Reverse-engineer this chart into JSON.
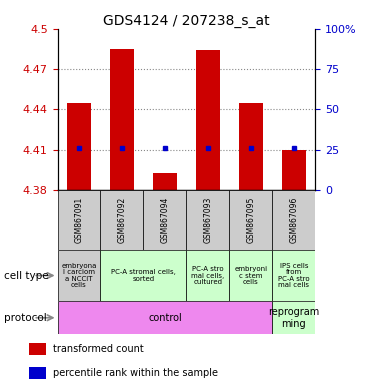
{
  "title": "GDS4124 / 207238_s_at",
  "samples": [
    "GSM867091",
    "GSM867092",
    "GSM867094",
    "GSM867093",
    "GSM867095",
    "GSM867096"
  ],
  "bar_tops": [
    4.445,
    4.485,
    4.393,
    4.484,
    4.445,
    4.41
  ],
  "bar_bottoms": [
    4.38,
    4.38,
    4.38,
    4.38,
    4.38,
    4.38
  ],
  "blue_dots": [
    4.411,
    4.411,
    4.411,
    4.411,
    4.411,
    4.411
  ],
  "ylim": [
    4.38,
    4.5
  ],
  "yticks": [
    4.38,
    4.41,
    4.44,
    4.47,
    4.5
  ],
  "ytick_labels": [
    "4.38",
    "4.41",
    "4.44",
    "4.47",
    "4.5"
  ],
  "y2ticks": [
    0,
    25,
    50,
    75,
    100
  ],
  "y2tick_labels": [
    "0",
    "25",
    "50",
    "75",
    "100%"
  ],
  "bar_color": "#cc0000",
  "dot_color": "#0000cc",
  "cell_groups": [
    {
      "start": 0,
      "end": 0,
      "color": "#cccccc",
      "label": "embryona\nl carciom\na NCCIT\ncells"
    },
    {
      "start": 1,
      "end": 2,
      "color": "#ccffcc",
      "label": "PC-A stromal cells,\nsorted"
    },
    {
      "start": 3,
      "end": 3,
      "color": "#ccffcc",
      "label": "PC-A stro\nmal cells,\ncultured"
    },
    {
      "start": 4,
      "end": 4,
      "color": "#ccffcc",
      "label": "embryoni\nc stem\ncells"
    },
    {
      "start": 5,
      "end": 5,
      "color": "#ccffcc",
      "label": "IPS cells\nfrom\nPC-A stro\nmal cells"
    }
  ],
  "prot_groups": [
    {
      "start": 0,
      "end": 4,
      "color": "#ee88ee",
      "label": "control"
    },
    {
      "start": 5,
      "end": 5,
      "color": "#ccffcc",
      "label": "reprogram\nming"
    }
  ],
  "legend_bar_label": "transformed count",
  "legend_dot_label": "percentile rank within the sample",
  "cell_type_label": "cell type",
  "protocol_label": "protocol",
  "gridline_color": "#888888",
  "tick_color_left": "#cc0000",
  "tick_color_right": "#0000cc"
}
